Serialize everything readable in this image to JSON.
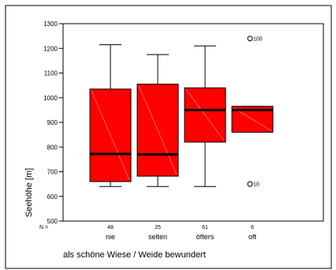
{
  "chart_data": {
    "type": "boxplot",
    "title": "",
    "xlabel": "als schöne Wiese / Weide bewundert",
    "ylabel": "Seehöhe [m]",
    "ylim": [
      500,
      1300
    ],
    "yticks": [
      500,
      600,
      700,
      800,
      900,
      1000,
      1100,
      1200,
      1300
    ],
    "n_label": "N =",
    "categories": [
      "nie",
      "selten",
      "öfters",
      "oft"
    ],
    "n": [
      "48",
      "25",
      "61",
      "6"
    ],
    "boxes": [
      {
        "category": "nie",
        "whisker_low": 640,
        "q1": 660,
        "median": 772,
        "q3": 1035,
        "whisker_high": 1215
      },
      {
        "category": "selten",
        "whisker_low": 640,
        "q1": 682,
        "median": 770,
        "q3": 1055,
        "whisker_high": 1175
      },
      {
        "category": "öfters",
        "whisker_low": 640,
        "q1": 820,
        "median": 950,
        "q3": 1040,
        "whisker_high": 1210
      },
      {
        "category": "oft",
        "whisker_low": 860,
        "q1": 860,
        "median": 950,
        "q3": 965,
        "whisker_high": 965
      }
    ],
    "outliers": [
      {
        "category": "oft",
        "value": 1240,
        "label": "100"
      },
      {
        "category": "oft",
        "value": 650,
        "label": "10"
      }
    ],
    "box_color": "#ff0000",
    "median_color": "#000000"
  }
}
